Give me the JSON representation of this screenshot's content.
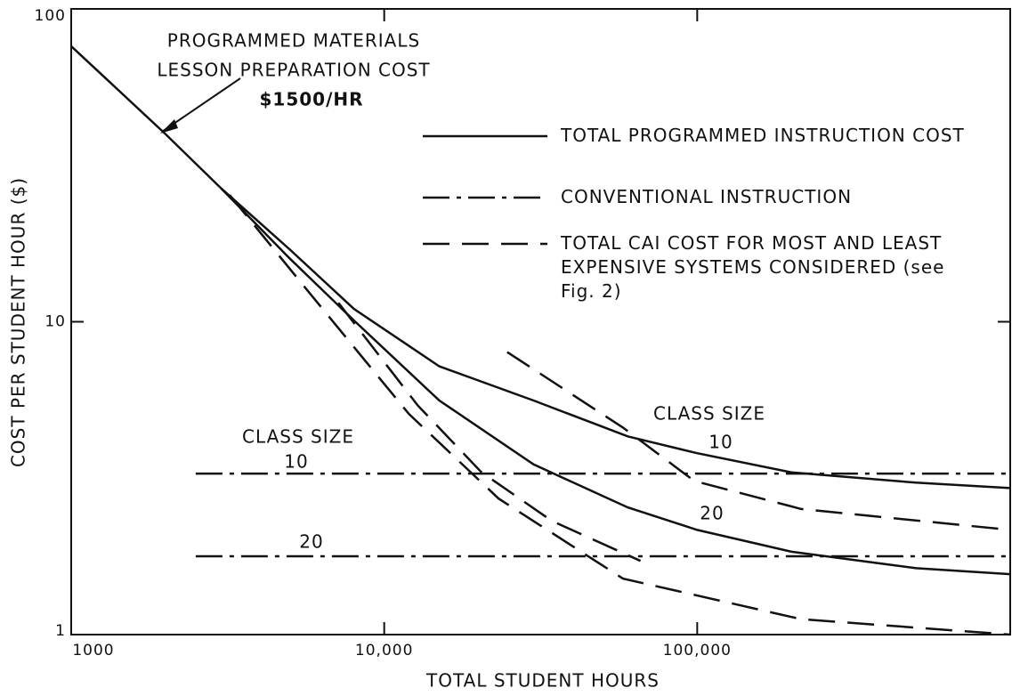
{
  "chart_data": {
    "type": "line",
    "xscale": "log",
    "yscale": "log",
    "x_label": "TOTAL STUDENT HOURS",
    "y_label": "COST PER STUDENT HOUR ($)",
    "xlim": [
      1000,
      1000000
    ],
    "ylim": [
      1,
      100
    ],
    "xticks": [
      1000,
      {
        "value": 10000,
        "label": "10,000"
      },
      {
        "value": 100000,
        "label": "100,000"
      }
    ],
    "yticks": [
      1,
      10,
      100
    ],
    "color": "#111111",
    "series": [
      {
        "name": "TOTAL PROGRAMMED INSTRUCTION COST",
        "style": "solid",
        "x": [
          1000,
          2000,
          3000,
          5000,
          8000,
          15000,
          30000,
          60000,
          100000,
          200000,
          500000,
          1000000,
          null,
          3000,
          5000,
          8000,
          15000,
          30000,
          60000,
          100000,
          200000,
          500000,
          1000000
        ],
        "values": [
          76,
          39.8,
          26.8,
          17,
          11,
          7.2,
          5.6,
          4.3,
          3.8,
          3.3,
          3.06,
          2.94,
          null,
          26.8,
          15.9,
          10.1,
          5.6,
          3.5,
          2.55,
          2.16,
          1.84,
          1.63,
          1.56
        ]
      },
      {
        "name": "CONVENTIONAL INSTRUCTION",
        "style": "dashdot",
        "x": [
          2500,
          1000000,
          null,
          2500,
          1000000
        ],
        "values": [
          3.27,
          3.27,
          null,
          1.78,
          1.78
        ]
      },
      {
        "name": "TOTAL CAI COST FOR MOST AND LEAST EXPENSIVE SYSTEMS CONSIDERED (see Fig. 2)",
        "style": "dashed",
        "x": [
          3210,
          5680,
          12000,
          23200,
          57900,
          215000,
          1000000,
          null,
          7140,
          12800,
          20400,
          34300,
          65900,
          null,
          24700,
          57900,
          97800,
          215000,
          1000000
        ],
        "values": [
          25.4,
          12.6,
          5.07,
          2.72,
          1.51,
          1.12,
          1.0,
          null,
          11.5,
          5.4,
          3.31,
          2.31,
          1.72,
          null,
          8.0,
          4.59,
          3.1,
          2.52,
          2.16
        ]
      }
    ],
    "annotations": [
      "PROGRAMMED MATERIALS",
      "LESSON PREPARATION COST",
      "$1500/HR",
      "CLASS SIZE",
      "10",
      "20",
      "CLASS SIZE",
      "10",
      "20"
    ]
  }
}
